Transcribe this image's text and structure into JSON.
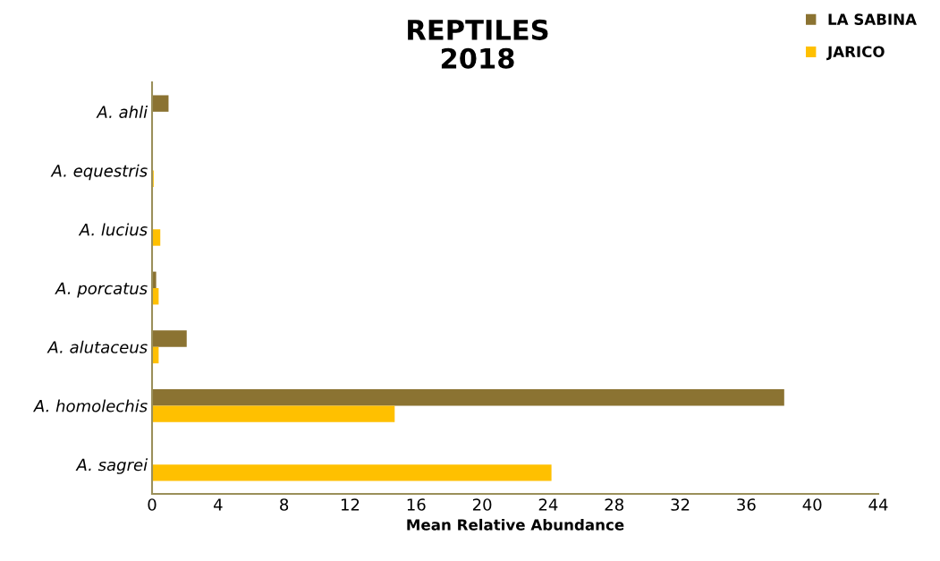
{
  "chart_data": {
    "type": "bar",
    "orientation": "horizontal",
    "title": "REPTILES\n2018",
    "xlabel": "Mean Relative Abundance",
    "categories": [
      "A. ahli",
      "A. equestris",
      "A. lucius",
      "A. porcatus",
      "A. alutaceus",
      "A. homolechis",
      "A. sagrei"
    ],
    "series": [
      {
        "name": "LA SABINA",
        "color": "#8b7332",
        "values": [
          1.0,
          null,
          0,
          0.25,
          2.1,
          38.3,
          0
        ]
      },
      {
        "name": "JARICO",
        "color": "#ffc000",
        "values": [
          0,
          0.1,
          0.5,
          0.4,
          0.4,
          14.7,
          24.2
        ]
      }
    ],
    "xlim": [
      0,
      44
    ],
    "xticks": [
      0,
      4,
      8,
      12,
      16,
      20,
      24,
      28,
      32,
      36,
      40,
      44
    ],
    "grid": false,
    "legend": "top right"
  }
}
